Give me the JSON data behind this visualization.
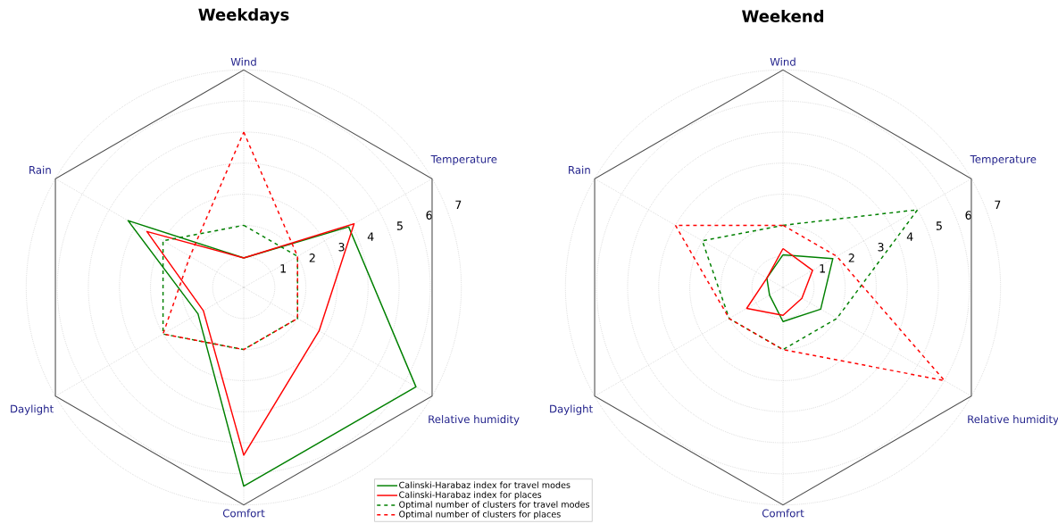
{
  "chart_data": [
    {
      "type": "radar",
      "title": "Weekdays",
      "categories": [
        "Wind",
        "Temperature",
        "Relative humidity",
        "Comfort",
        "Daylight",
        "Rain"
      ],
      "series": [
        {
          "name": "Calinski-Harabaz index for travel modes",
          "color": "#008000",
          "line_style": "solid",
          "values": [
            0.95,
            3.9,
            6.4,
            6.4,
            1.7,
            4.3
          ]
        },
        {
          "name": "Calinski-Harabaz index for places",
          "color": "#ff0000",
          "line_style": "solid",
          "values": [
            0.95,
            4.1,
            2.8,
            5.4,
            1.5,
            3.6
          ]
        },
        {
          "name": "Optimal number of clusters for travel modes",
          "color": "#008000",
          "line_style": "dashed",
          "values": [
            2,
            2,
            2,
            2,
            3,
            3
          ]
        },
        {
          "name": "Optimal number of clusters for places",
          "color": "#ff0000",
          "line_style": "dashed",
          "values": [
            5,
            2,
            2,
            2,
            3,
            2
          ]
        }
      ],
      "ylim": [
        0,
        7
      ],
      "yticks": [
        1,
        2,
        3,
        4,
        5,
        6,
        7
      ],
      "grid": true,
      "legend": "bottom right"
    },
    {
      "type": "radar",
      "title": "Weekend",
      "categories": [
        "Wind",
        "Temperature",
        "Relative humidity",
        "Comfort",
        "Daylight",
        "Rain"
      ],
      "series": [
        {
          "color": "#008000",
          "line_style": "solid",
          "values": [
            1.05,
            1.85,
            1.4,
            1.1,
            0.5,
            0.6
          ]
        },
        {
          "color": "#ff0000",
          "line_style": "solid",
          "values": [
            1.25,
            1.1,
            0.7,
            0.9,
            1.35,
            0.6
          ]
        },
        {
          "color": "#008000",
          "line_style": "dashed",
          "values": [
            2,
            5,
            2,
            2,
            2,
            3
          ]
        },
        {
          "color": "#ff0000",
          "line_style": "dashed",
          "values": [
            2,
            2,
            6,
            2,
            2,
            4
          ]
        }
      ],
      "ylim": [
        0,
        7
      ],
      "yticks": [
        1,
        2,
        3,
        4,
        5,
        6,
        7
      ],
      "grid": true
    }
  ]
}
